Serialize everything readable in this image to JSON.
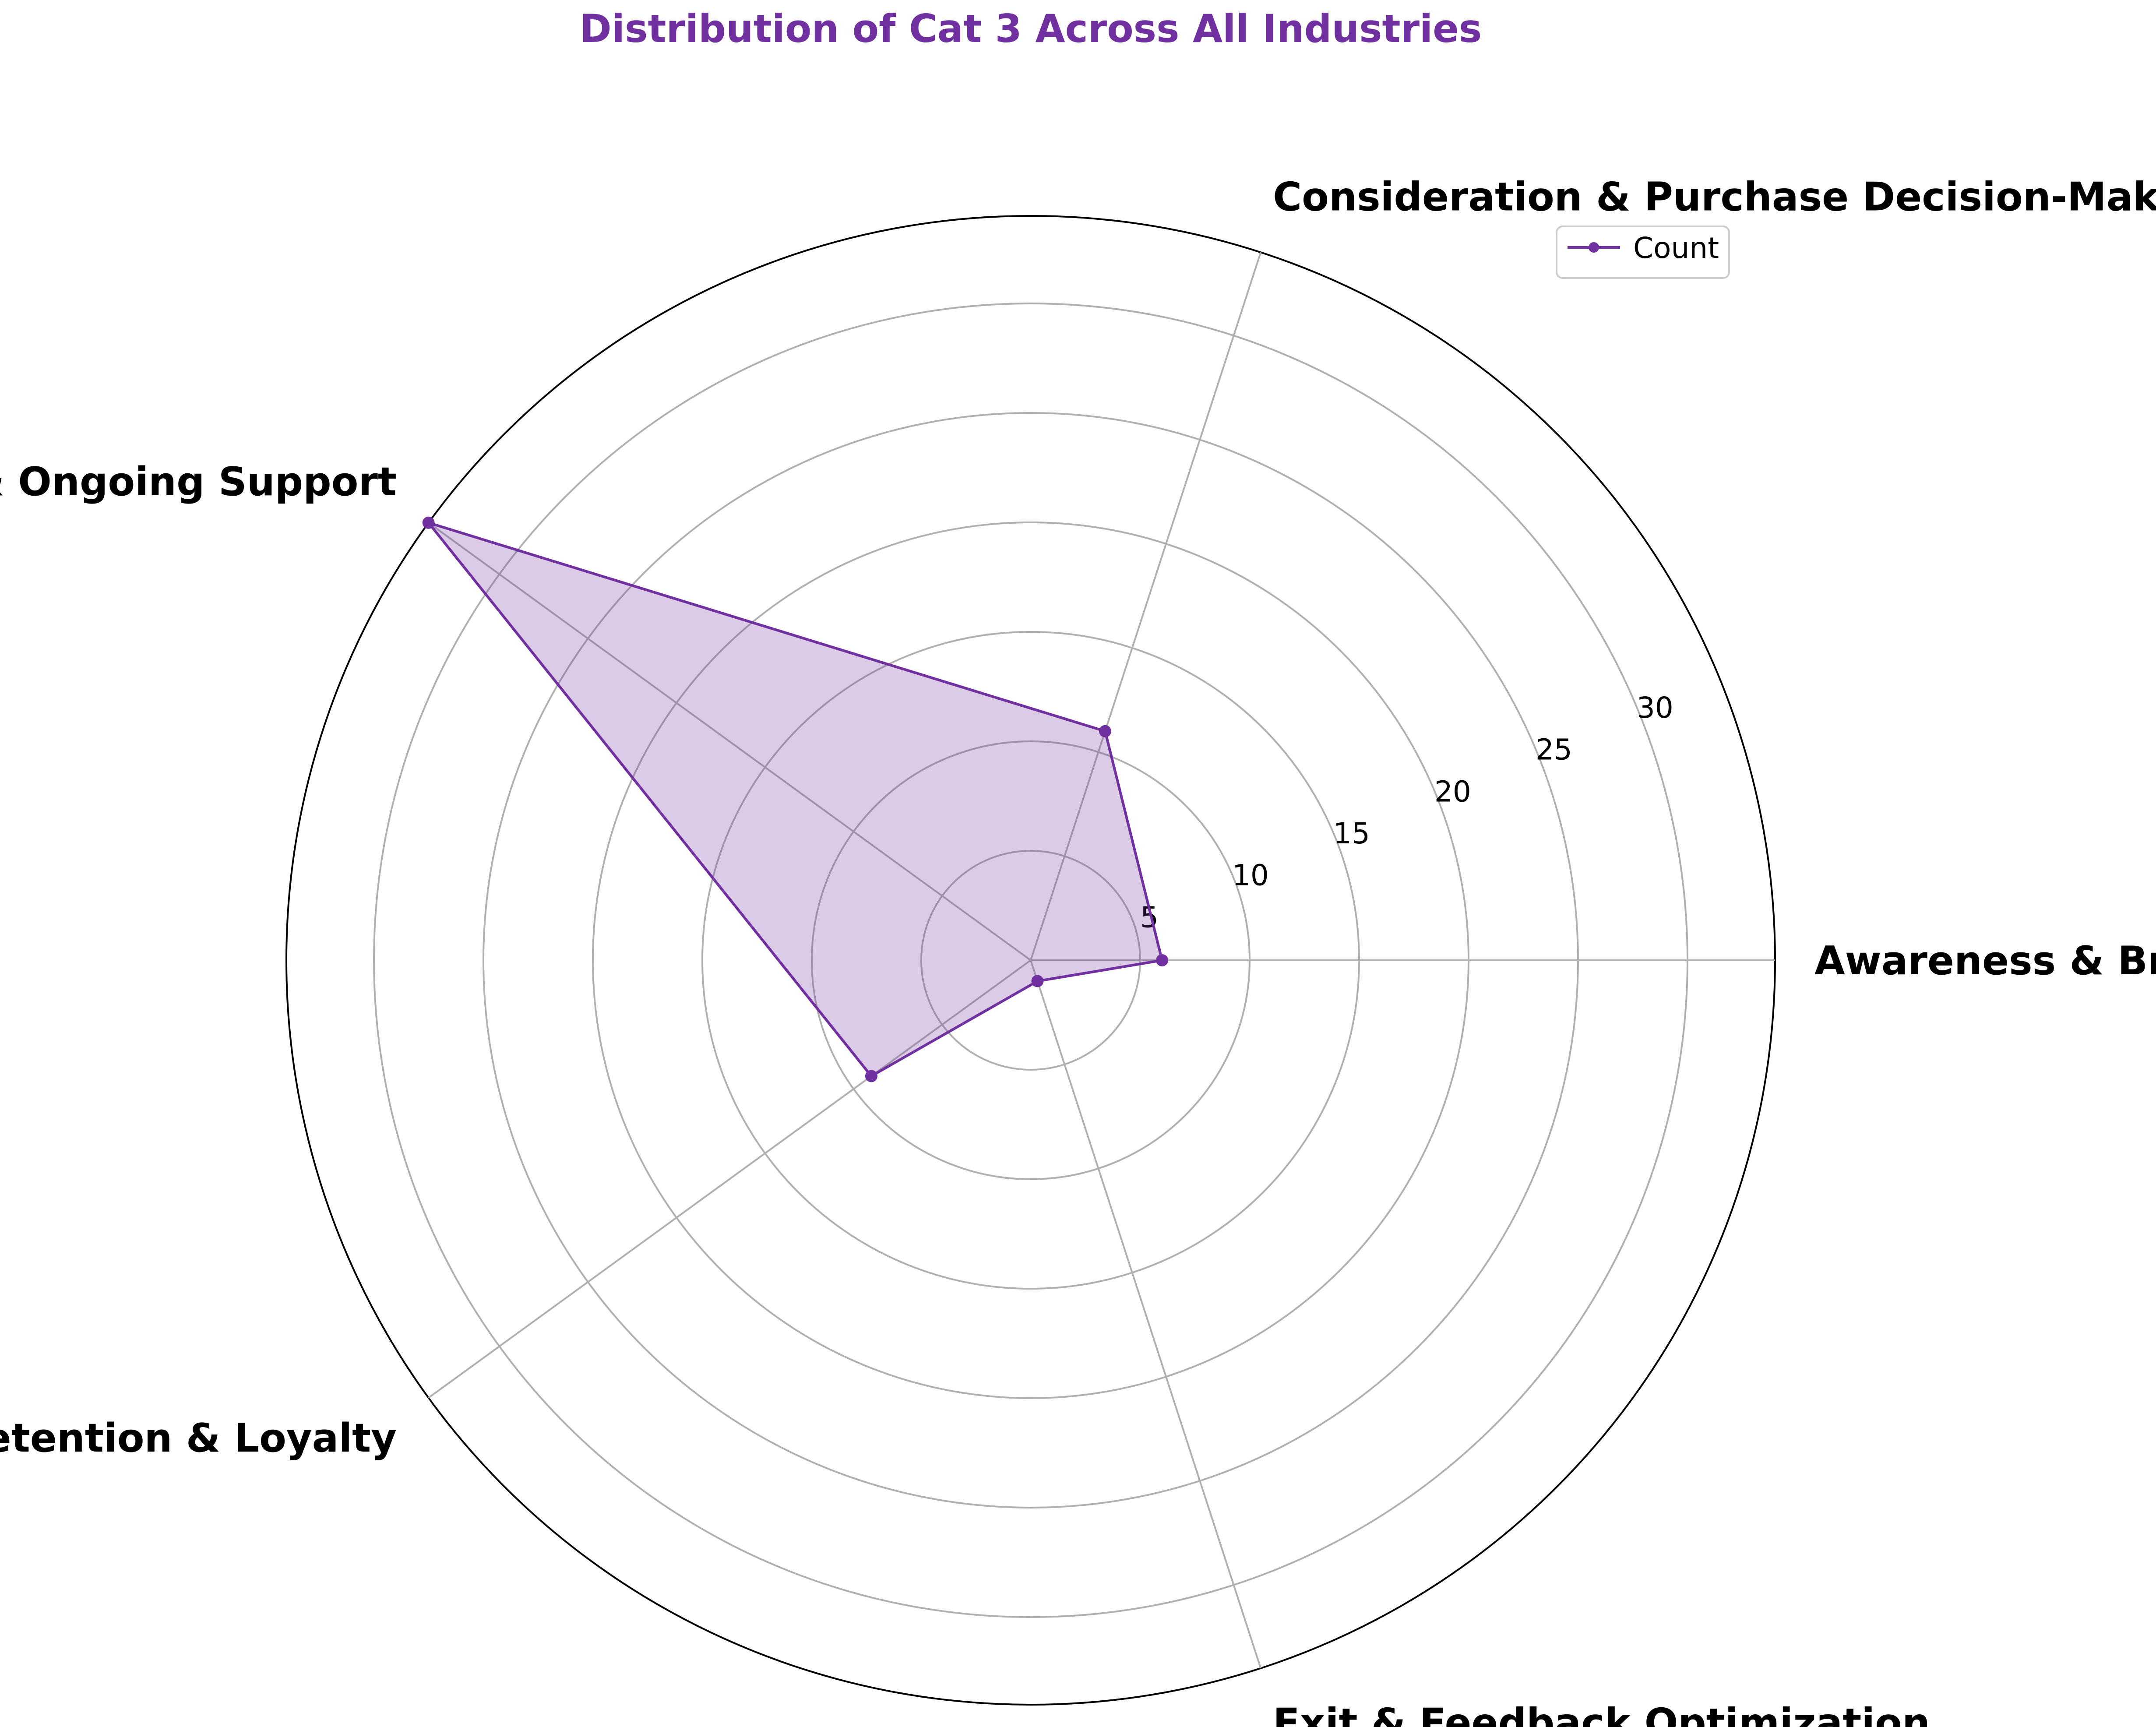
{
  "chart_data": {
    "type": "radar",
    "title": "Distribution of Cat 3 Across All Industries",
    "categories": [
      "Awareness & Brand Discovery",
      "Consideration & Purchase Decision-Making",
      "Service Usage & Ongoing Support",
      "Customer Retention & Loyalty",
      "Exit & Feedback Optimization"
    ],
    "series": [
      {
        "name": "Count",
        "values": [
          6,
          11,
          34,
          9,
          1
        ]
      }
    ],
    "r_ticks": [
      5,
      10,
      15,
      20,
      25,
      30
    ],
    "r_max": 34,
    "grid": true,
    "legend_position": "top-right",
    "colors": {
      "title": "#7030a0",
      "line": "#7030a0",
      "fill": "#7030a0",
      "grid": "#b0b0b0",
      "outline": "#000000"
    }
  }
}
